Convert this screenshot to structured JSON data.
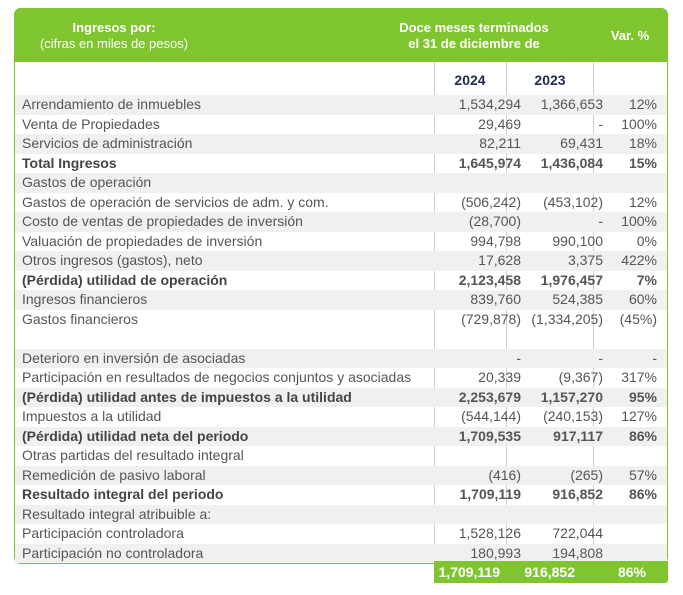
{
  "header": {
    "label_line1": "Ingresos por:",
    "label_line2": "(cifras en miles de pesos)",
    "period_line1": "Doce meses terminados",
    "period_line2": "el 31 de diciembre de",
    "var_label": "Var. %"
  },
  "years": {
    "y1": "2024",
    "y2": "2023"
  },
  "rows": [
    {
      "label": "Arrendamiento de inmuebles",
      "v2024": "1,534,294",
      "v2023": "1,366,653",
      "var": "12%",
      "bold": false,
      "shade": true
    },
    {
      "label": "Venta de Propiedades",
      "v2024": "29,469",
      "v2023": "-",
      "var": "100%",
      "bold": false,
      "shade": false
    },
    {
      "label": "Servicios de administración",
      "v2024": "82,211",
      "v2023": "69,431",
      "var": "18%",
      "bold": false,
      "shade": true
    },
    {
      "label": "Total Ingresos",
      "v2024": "1,645,974",
      "v2023": "1,436,084",
      "var": "15%",
      "bold": true,
      "shade": false
    },
    {
      "label": "Gastos de operación",
      "v2024": "",
      "v2023": "",
      "var": "",
      "bold": false,
      "shade": true
    },
    {
      "label": "Gastos de operación de servicios de adm. y com.",
      "v2024": "(506,242)",
      "v2023": "(453,102)",
      "var": "12%",
      "bold": false,
      "shade": false
    },
    {
      "label": "Costo de ventas de propiedades de inversión",
      "v2024": "(28,700)",
      "v2023": "-",
      "var": "100%",
      "bold": false,
      "shade": true
    },
    {
      "label": "Valuación de propiedades de inversión",
      "v2024": "994,798",
      "v2023": "990,100",
      "var": "0%",
      "bold": false,
      "shade": false
    },
    {
      "label": "Otros ingresos (gastos), neto",
      "v2024": "17,628",
      "v2023": "3,375",
      "var": "422%",
      "bold": false,
      "shade": true
    },
    {
      "label": "(Pérdida) utilidad de operación",
      "v2024": "2,123,458",
      "v2023": "1,976,457",
      "var": "7%",
      "bold": true,
      "shade": false
    },
    {
      "label": "Ingresos financieros",
      "v2024": "839,760",
      "v2023": "524,385",
      "var": "60%",
      "bold": false,
      "shade": true
    },
    {
      "label": "Gastos financieros",
      "v2024": "(729,878)",
      "v2023": "(1,334,205)",
      "var": "(45%)",
      "bold": false,
      "shade": false
    },
    {
      "label": "",
      "v2024": "",
      "v2023": "",
      "var": "",
      "bold": false,
      "shade": false
    },
    {
      "label": "Deterioro en inversión de asociadas",
      "v2024": "-",
      "v2023": "-",
      "var": "-",
      "bold": false,
      "shade": true
    },
    {
      "label": "Participación en resultados de negocios conjuntos y asociadas",
      "v2024": "20,339",
      "v2023": "(9,367)",
      "var": "317%",
      "bold": false,
      "shade": false
    },
    {
      "label": "(Pérdida) utilidad antes de impuestos a la utilidad",
      "v2024": "2,253,679",
      "v2023": "1,157,270",
      "var": "95%",
      "bold": true,
      "shade": true
    },
    {
      "label": "Impuestos a la utilidad",
      "v2024": "(544,144)",
      "v2023": "(240,153)",
      "var": "127%",
      "bold": false,
      "shade": false
    },
    {
      "label": "(Pérdida) utilidad neta del periodo",
      "v2024": "1,709,535",
      "v2023": "917,117",
      "var": "86%",
      "bold": true,
      "shade": true
    },
    {
      "label": "Otras partidas del resultado integral",
      "v2024": "",
      "v2023": "",
      "var": "",
      "bold": false,
      "shade": false
    },
    {
      "label": "Remedición de pasivo laboral",
      "v2024": "(416)",
      "v2023": "(265)",
      "var": "57%",
      "bold": false,
      "shade": true
    },
    {
      "label": "Resultado integral del periodo",
      "v2024": "1,709,119",
      "v2023": "916,852",
      "var": "86%",
      "bold": true,
      "shade": false
    },
    {
      "label": "Resultado integral atribuible a:",
      "v2024": "",
      "v2023": "",
      "var": "",
      "bold": false,
      "shade": true
    },
    {
      "label": "Participación controladora",
      "v2024": "1,528,126",
      "v2023": "722,044",
      "var": "",
      "bold": false,
      "shade": false
    },
    {
      "label": "Participación no controladora",
      "v2024": "180,993",
      "v2023": "194,808",
      "var": "",
      "bold": false,
      "shade": true
    }
  ],
  "footer": {
    "v2024": "1,709,119",
    "v2023": "916,852",
    "var": "86%"
  },
  "colors": {
    "accent": "#7ec52f",
    "year_text": "#1f2b50",
    "row_shade": "#f0f0f0"
  }
}
